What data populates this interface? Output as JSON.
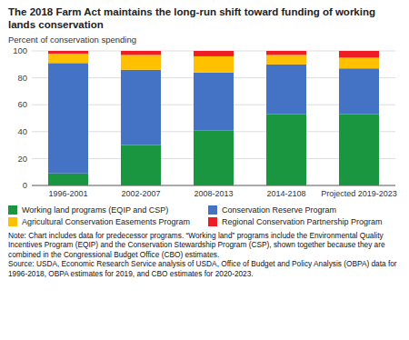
{
  "chart_data": {
    "type": "bar",
    "stacked": true,
    "title": "The 2018 Farm Act maintains the long-run shift toward funding of working lands conservation",
    "y_label": "Percent of conservation spending",
    "categories": [
      "1996-2001",
      "2002-2007",
      "2008-2013",
      "2014-2108",
      "Projected 2019-2023"
    ],
    "series": [
      {
        "name": "Working land programs (EQIP and CSP)",
        "color": "#1a9641",
        "values": [
          9,
          30,
          41,
          53,
          53
        ]
      },
      {
        "name": "Conservation Reserve Program",
        "color": "#4472c4",
        "values": [
          82,
          56,
          43,
          37,
          34
        ]
      },
      {
        "name": "Agricultural Conservation Easements Program",
        "color": "#ffc000",
        "values": [
          7,
          11,
          12,
          7,
          8
        ]
      },
      {
        "name": "Regional Conservation Partnership Program",
        "color": "#ee1c25",
        "values": [
          2,
          3,
          4,
          3,
          5
        ]
      }
    ],
    "ylim": [
      0,
      100
    ],
    "yticks": [
      0,
      20,
      40,
      60,
      80,
      100
    ],
    "grid": true,
    "legend": "bottom",
    "annotations": [
      "Note: Chart includes data for predecessor programs. “Working land” programs include the Environmental Quality Incentives Program (EQIP) and the Conservation Stewardship Program (CSP), shown together because they are combined in the Congressional Budget Office (CBO) estimates.",
      "Source: USDA, Economic Research Service analysis of USDA, Office of Budget and Policy Analysis (OBPA) data for 1996-2018, OBPA estimates for 2019, and CBO estimates for 2020-2023."
    ]
  }
}
